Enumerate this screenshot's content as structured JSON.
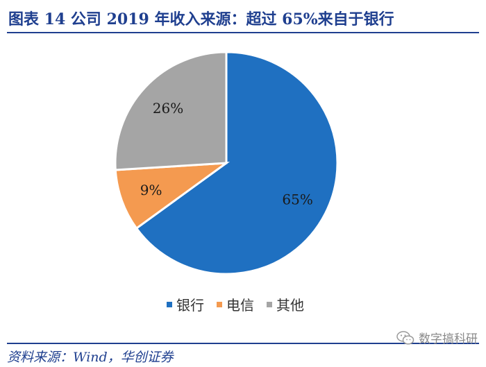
{
  "title": "图表 14   公司 2019 年收入来源：超过 65%来自于银行",
  "source": "资料来源：Wind，华创证券",
  "watermark": "数字搞科研",
  "chart_data": {
    "type": "pie",
    "title": "",
    "labels": [
      "银行",
      "电信",
      "其他"
    ],
    "values": [
      65,
      9,
      26
    ],
    "value_labels": [
      "65%",
      "9%",
      "26%"
    ],
    "colors": [
      "#1f70c1",
      "#f49a50",
      "#a5a5a5"
    ],
    "legend": "bottom",
    "start_angle": "12 o'clock",
    "direction": "clockwise"
  }
}
